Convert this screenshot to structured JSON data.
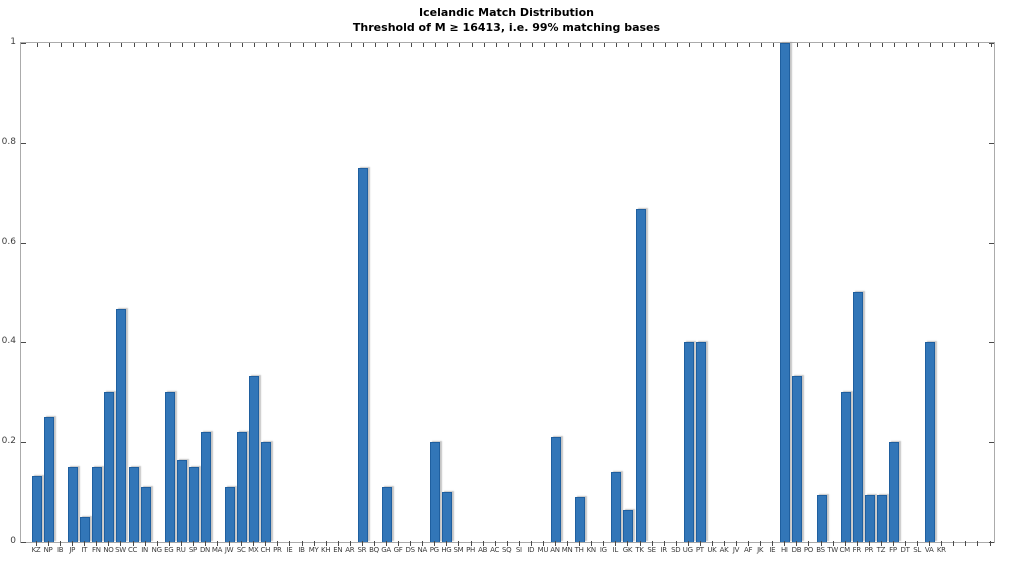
{
  "title": "Icelandic Match Distribution",
  "subtitle": "Threshold of M ≥ 16413, i.e. 99% matching bases",
  "chart_data": {
    "type": "bar",
    "title": "Icelandic Match Distribution",
    "subtitle": "Threshold of M ≥ 16413, i.e. 99% matching bases",
    "xlabel": "",
    "ylabel": "",
    "ylim": [
      0,
      1
    ],
    "yticks": [
      0,
      0.2,
      0.4,
      0.6,
      0.8,
      1
    ],
    "ytick_labels": [
      "0",
      "0.2",
      "0.4",
      "0.6",
      "0.8",
      "1"
    ],
    "grid": false,
    "legend": "none",
    "box": true,
    "categories": [
      "KZ",
      "NP",
      "IB",
      "JP",
      "IT",
      "FN",
      "NO",
      "SW",
      "CC",
      "IN",
      "NG",
      "EG",
      "RU",
      "SP",
      "DN",
      "MA",
      "JW",
      "SC",
      "MX",
      "CH",
      "PR",
      "IE",
      "IB",
      "MY",
      "KH",
      "EN",
      "AR",
      "SR",
      "BQ",
      "GA",
      "GF",
      "DS",
      "NA",
      "PG",
      "HG",
      "SM",
      "PH",
      "AB",
      "AC",
      "SQ",
      "SI",
      "ID",
      "MU",
      "AN",
      "MN",
      "TH",
      "KN",
      "IG",
      "IL",
      "GK",
      "TK",
      "SE",
      "IR",
      "SD",
      "UG",
      "PT",
      "UK",
      "AK",
      "JV",
      "AF",
      "JK",
      "IE",
      "HI",
      "DB",
      "PO",
      "BS",
      "TW",
      "CM",
      "FR",
      "PR",
      "TZ",
      "FP",
      "DT",
      "SL",
      "VA",
      "KR"
    ],
    "values": [
      0.133,
      0.25,
      0,
      0.15,
      0.05,
      0.15,
      0.3,
      0.467,
      0.15,
      0.11,
      0,
      0.3,
      0.165,
      0.15,
      0.22,
      0,
      0.11,
      0.22,
      0.333,
      0.2,
      0,
      0,
      0,
      0,
      0,
      0,
      0,
      0.75,
      0,
      0.11,
      0,
      0,
      0,
      0.2,
      0.1,
      0,
      0,
      0,
      0,
      0,
      0,
      0,
      0,
      0.21,
      0,
      0.09,
      0,
      0,
      0.14,
      0.065,
      0.667,
      0,
      0,
      0,
      0.4,
      0.4,
      0,
      0,
      0,
      0,
      0,
      0,
      1.0,
      0.333,
      0,
      0.095,
      0,
      0.3,
      0.5,
      0.095,
      0.095,
      0.2,
      0,
      0,
      0.4,
      0
    ],
    "extra_unlabeled_tick_slots": 4,
    "bar_face_color": "#3276b8",
    "bar_edge_color": "#1f5f9f",
    "axis_box_color": "#ababab",
    "tick_color": "#4a4a4a",
    "tick_label_color": "#3f3f3f"
  }
}
